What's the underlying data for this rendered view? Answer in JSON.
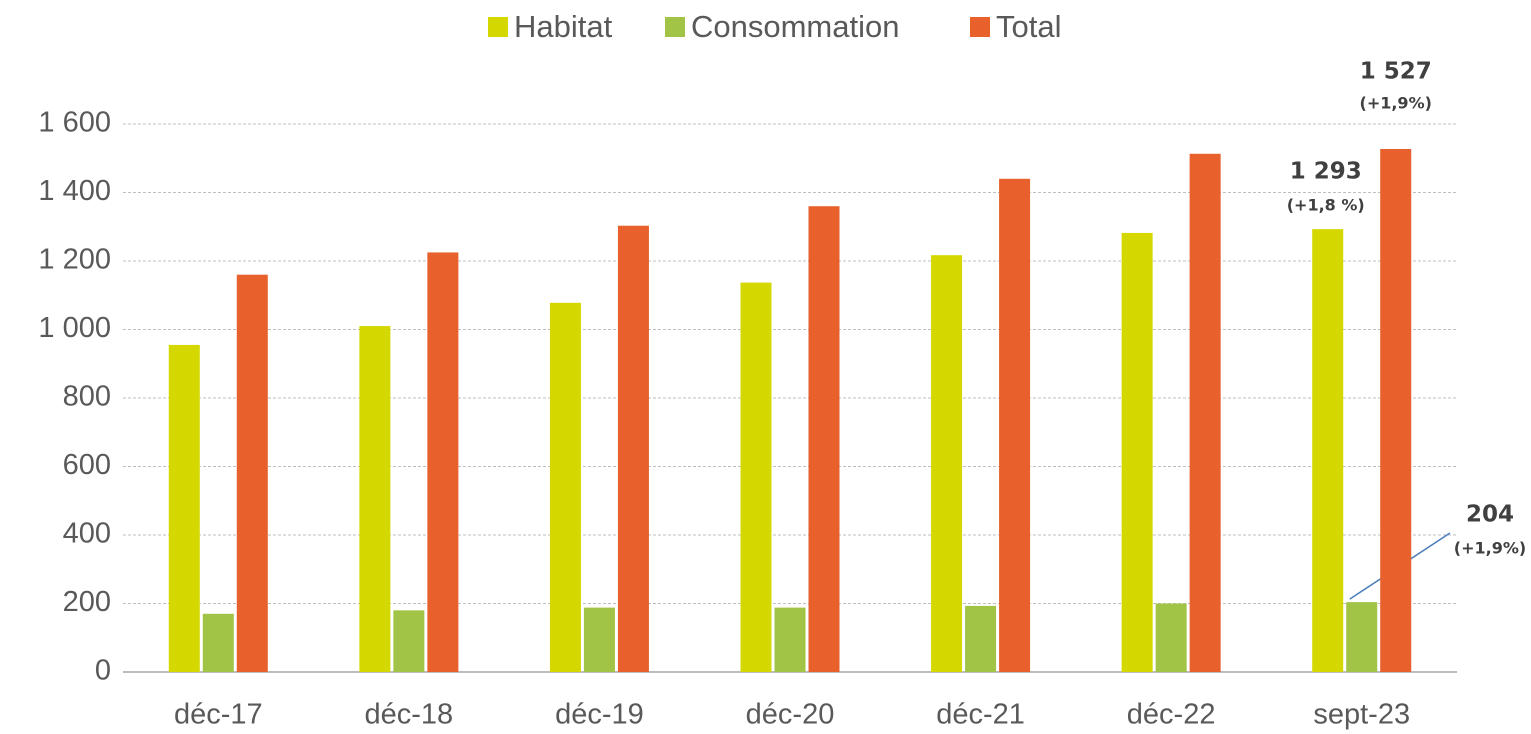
{
  "chart_data": {
    "type": "bar",
    "categories": [
      "déc-17",
      "déc-18",
      "déc-19",
      "déc-20",
      "déc-21",
      "déc-22",
      "sept-23"
    ],
    "series": [
      {
        "name": "Habitat",
        "color": "#d4d800",
        "values": [
          955,
          1010,
          1078,
          1137,
          1217,
          1282,
          1293
        ],
        "value_labels": [
          null,
          null,
          null,
          null,
          null,
          null,
          "1 293"
        ],
        "change_labels": [
          null,
          null,
          null,
          null,
          null,
          null,
          "(+1,8 %)"
        ]
      },
      {
        "name": "Consommation",
        "color": "#a2c446",
        "values": [
          170,
          180,
          188,
          188,
          193,
          200,
          204
        ],
        "value_labels": [
          null,
          null,
          null,
          null,
          null,
          null,
          "204"
        ],
        "change_labels": [
          null,
          null,
          null,
          null,
          null,
          null,
          "(+1,9%)"
        ]
      },
      {
        "name": "Total",
        "color": "#e8602c",
        "values": [
          1160,
          1225,
          1303,
          1360,
          1440,
          1513,
          1527
        ],
        "value_labels": [
          null,
          null,
          null,
          null,
          null,
          null,
          "1 527"
        ],
        "change_labels": [
          null,
          null,
          null,
          null,
          null,
          null,
          "(+1,9%)"
        ]
      }
    ],
    "ylim": [
      0,
      1600
    ],
    "yticks": [
      0,
      200,
      400,
      600,
      800,
      {
        "value": 1000,
        "label": "1 000"
      },
      {
        "value": 1200,
        "label": "1 200"
      },
      {
        "value": 1400,
        "label": "1 400"
      },
      {
        "value": 1600,
        "label": "1 600"
      }
    ],
    "grid": true,
    "legend": "top"
  }
}
